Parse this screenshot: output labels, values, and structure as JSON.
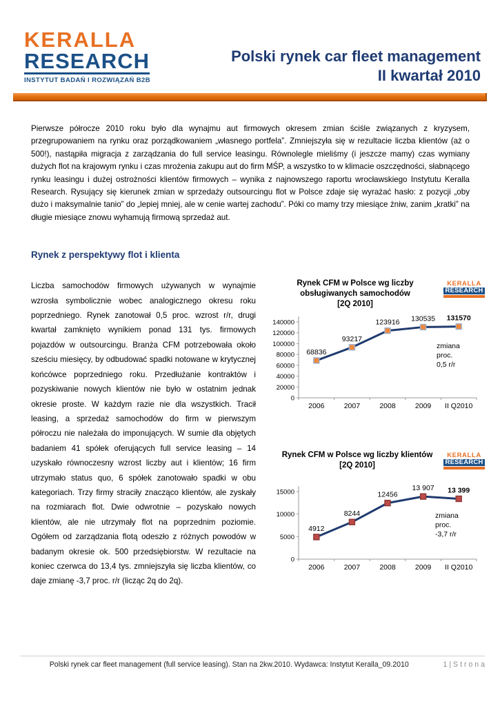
{
  "header": {
    "logo": {
      "line1": "KERALLA",
      "line2": "RESEARCH",
      "tagline": "INSTYTUT BADAŃ I ROZWIĄZAŃ B2B"
    },
    "title_line1": "Polski rynek car fleet management",
    "title_line2": "II kwartał 2010"
  },
  "colors": {
    "brand_orange": "#E87024",
    "brand_blue": "#1B5087",
    "title_navy": "#1F3B73",
    "chart_line_navy": "#1F3A6E"
  },
  "intro": "Pierwsze półrocze 2010 roku było dla wynajmu aut firmowych okresem zmian ściśle związanych z kryzysem, przegrupowaniem na rynku oraz porządkowaniem „własnego portfela”. Zmniejszyła się w rezultacie liczba klientów (aż o 500!), nastąpiła migracja z zarządzania do full service leasingu. Równolegle mieliśmy (i jeszcze mamy) czas wymiany dużych flot na krajowym rynku i czas mrożenia zakupu aut do firm MŚP, a wszystko to w klimacie oszczędności, słabnącego rynku leasingu i dużej ostrożności klientów firmowych – wynika z najnowszego raportu wrocławskiego Instytutu Keralla Research. Rysujący się kierunek zmian w sprzedaży outsourcingu flot w Polsce zdaje się wyrażać hasło: z pozycji „oby dużo i maksymalnie tanio” do „lepiej mniej, ale w cenie wartej zachodu”. Póki co mamy trzy miesiące żniw, zanim „kratki” na długie miesiące znowu wyhamują firmową sprzedaż aut.",
  "section_heading": "Rynek z perspektywy flot i klienta",
  "left_column": "Liczba samochodów firmowych używanych w wynajmie wzrosła symbolicznie wobec analogicznego okresu roku poprzedniego. Rynek zanotował 0,5 proc. wzrost r/r, drugi kwartał zamknięto wynikiem ponad 131 tys. firmowych pojazdów w outsourcingu. Branża CFM potrzebowała około sześciu miesięcy, by odbudować spadki notowane w krytycznej końcówce poprzedniego roku. Przedłużanie kontraktów i pozyskiwanie nowych klientów nie było w ostatnim jednak okresie proste. W każdym razie nie dla wszystkich. Tracił leasing, a sprzedaż samochodów do firm w pierwszym półroczu nie należała do imponujących. W sumie dla objętych badaniem 41 spółek oferujących full service leasing – 14 uzyskało równoczesny wzrost liczby aut i klientów; 16 firm utrzymało status quo, 6 spółek zanotowało spadki w obu kategoriach. Trzy firmy straciły znacząco klientów, ale zyskały na rozmiarach flot. Dwie odwrotnie – pozyskało nowych klientów, ale nie utrzymały flot na poprzednim poziomie. Ogółem od zarządzania flotą odeszło z różnych powodów w badanym okresie ok. 500 przedsiębiorstw. W rezultacie na koniec czerwca do 13,4 tys. zmniejszyła się liczba klientów, co daje zmianę -3,7 proc. r/r (licząc 2q do 2q).",
  "chart_data": [
    {
      "type": "line",
      "title": "Rynek CFM w Polsce wg liczby obsługiwanych samochodów [2Q 2010]",
      "title_lines": [
        "Rynek CFM w Polsce wg liczby",
        "obsługiwanych samochodów",
        "[2Q 2010]"
      ],
      "categories": [
        "2006",
        "2007",
        "2008",
        "2009",
        "II Q2010"
      ],
      "values": [
        68836,
        93217,
        123916,
        130535,
        131570
      ],
      "point_labels": [
        "68836",
        "93217",
        "123916",
        "130535",
        "131570"
      ],
      "xlabel": "",
      "ylabel": "",
      "ylim": [
        0,
        140000
      ],
      "yticks": [
        0,
        20000,
        40000,
        60000,
        80000,
        100000,
        120000,
        140000
      ],
      "grid": false,
      "legend": false,
      "annotation": "zmiana proc. 0,5 r/r",
      "annotation_lines": [
        "zmiana",
        "proc.",
        "0,5 r/r"
      ],
      "line_color": "#1F3A6E",
      "marker_fill": "#F0883C",
      "marker_stroke": "#9DB2D0"
    },
    {
      "type": "line",
      "title": "Rynek CFM w Polsce wg liczby klientów [2Q 2010]",
      "title_lines": [
        "Rynek CFM w Polsce wg liczby klientów",
        "[2Q 2010]"
      ],
      "categories": [
        "2006",
        "2007",
        "2008",
        "2009",
        "II Q2010"
      ],
      "values": [
        4912,
        8244,
        12456,
        13907,
        13399
      ],
      "point_labels": [
        "4912",
        "8244",
        "12456",
        "13 907",
        "13 399"
      ],
      "xlabel": "",
      "ylabel": "",
      "ylim": [
        0,
        15000
      ],
      "yticks": [
        0,
        5000,
        10000,
        15000
      ],
      "grid": false,
      "legend": false,
      "annotation": "zmiana proc. -3,7 r/r",
      "annotation_lines": [
        "zmiana",
        "proc.",
        "-3,7 r/r"
      ],
      "line_color": "#1F3A6E",
      "marker_fill": "#BE4B48",
      "marker_stroke": "#8C3836"
    }
  ],
  "footer": {
    "text": "Polski rynek car fleet management  (full service leasing). Stan na 2kw.2010.   Wydawca: Instytut Keralla_09.2010",
    "page": "1 | S t r o n a"
  }
}
